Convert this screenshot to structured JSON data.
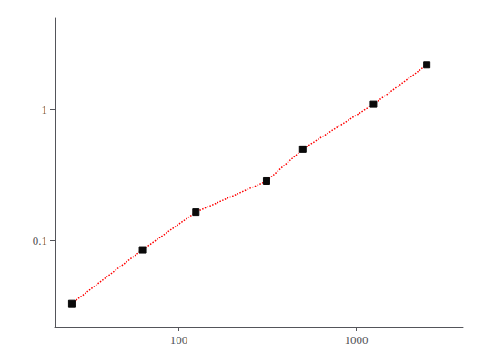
{
  "chart_data": {
    "type": "line",
    "x": [
      25,
      62.5,
      125,
      312.5,
      500,
      1250,
      2500
    ],
    "values": [
      0.033,
      0.085,
      0.165,
      0.285,
      0.5,
      1.1,
      2.2
    ],
    "color": "#ff0000",
    "colors": [
      "#0a0a0a",
      "#0a0a0a",
      "#0a0a0a",
      "#0a0a0a",
      "#0a0a0a",
      "#0a0a0a",
      "#0a0a0a"
    ],
    "marker": "square",
    "line_style": "dotted",
    "log": true,
    "xlim": [
      20,
      4000
    ],
    "ylim": [
      0.022,
      5.0
    ],
    "xticks": [
      100,
      1000
    ],
    "yticks": [
      0.1,
      1
    ],
    "grid": false
  }
}
